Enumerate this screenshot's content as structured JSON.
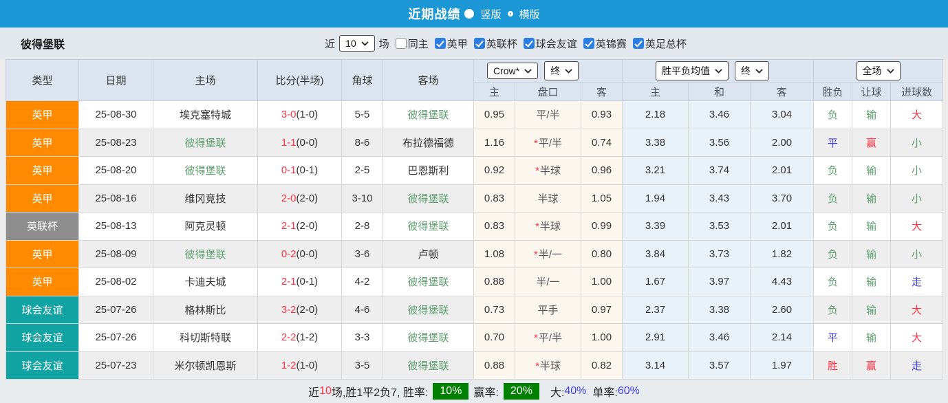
{
  "header": {
    "title": "近期战绩",
    "layout_options": [
      {
        "label": "竖版",
        "selected": true
      },
      {
        "label": "横版",
        "selected": false
      }
    ]
  },
  "filter": {
    "team": "彼得堡联",
    "near_label": "近",
    "matches_value": "10",
    "matches_label": "场",
    "same_home": {
      "label": "同主",
      "checked": false
    },
    "leagues": [
      {
        "label": "英甲",
        "checked": true
      },
      {
        "label": "英联杯",
        "checked": true
      },
      {
        "label": "球会友谊",
        "checked": true
      },
      {
        "label": "英锦赛",
        "checked": true
      },
      {
        "label": "英足总杯",
        "checked": true
      }
    ]
  },
  "league_colors": {
    "英甲": "#ff8a00",
    "英联杯": "#8e8e8e",
    "球会友谊": "#12a3a3"
  },
  "accent_colors": {
    "topbar_blue": "#1b97d5",
    "checkbox_blue": "#2a7de2",
    "badge_green": "#008000",
    "win_red": "#ff3344",
    "lose_green": "#5f9f6f",
    "draw_blue": "#4343e8"
  },
  "table": {
    "columns": [
      "类型",
      "日期",
      "主场",
      "比分(半场)",
      "角球",
      "客场"
    ],
    "odds_header": {
      "bookmaker_select": "Crow*",
      "bookmaker_time_select": "终",
      "avg_select": "胜平负均值",
      "avg_time_select": "终",
      "scope_select": "全场",
      "sub_columns": [
        "主",
        "盘口",
        "客",
        "主",
        "和",
        "客",
        "胜负",
        "让球",
        "进球数"
      ]
    },
    "rows": [
      {
        "type": "英甲",
        "date": "25-08-30",
        "home": {
          "name": "埃克塞特城",
          "self": false
        },
        "score": "3-0",
        "half": "(1-0)",
        "corner": "5-5",
        "away": {
          "name": "彼得堡联",
          "self": true
        },
        "odds": [
          "0.95",
          "平/半",
          "0.93"
        ],
        "star": false,
        "avg": [
          "2.18",
          "3.46",
          "3.04"
        ],
        "results": [
          {
            "text": "负",
            "color": "green"
          },
          {
            "text": "输",
            "color": "green"
          },
          {
            "text": "大",
            "color": "red"
          }
        ]
      },
      {
        "type": "英甲",
        "date": "25-08-23",
        "home": {
          "name": "彼得堡联",
          "self": true
        },
        "score": "1-1",
        "half": "(0-0)",
        "corner": "8-6",
        "away": {
          "name": "布拉德福德",
          "self": false
        },
        "odds": [
          "1.16",
          "平/半",
          "0.74"
        ],
        "star": true,
        "avg": [
          "3.38",
          "3.56",
          "2.00"
        ],
        "results": [
          {
            "text": "平",
            "color": "blue"
          },
          {
            "text": "赢",
            "color": "red"
          },
          {
            "text": "小",
            "color": "green"
          }
        ]
      },
      {
        "type": "英甲",
        "date": "25-08-20",
        "home": {
          "name": "彼得堡联",
          "self": true
        },
        "score": "0-1",
        "half": "(0-1)",
        "corner": "2-5",
        "away": {
          "name": "巴恩斯利",
          "self": false
        },
        "odds": [
          "0.92",
          "半球",
          "0.96"
        ],
        "star": true,
        "avg": [
          "3.21",
          "3.74",
          "2.01"
        ],
        "results": [
          {
            "text": "负",
            "color": "green"
          },
          {
            "text": "输",
            "color": "green"
          },
          {
            "text": "小",
            "color": "green"
          }
        ]
      },
      {
        "type": "英甲",
        "date": "25-08-16",
        "home": {
          "name": "维冈竞技",
          "self": false
        },
        "score": "2-0",
        "half": "(2-0)",
        "corner": "3-10",
        "away": {
          "name": "彼得堡联",
          "self": true
        },
        "odds": [
          "0.83",
          "半球",
          "1.05"
        ],
        "star": false,
        "avg": [
          "1.94",
          "3.43",
          "3.70"
        ],
        "results": [
          {
            "text": "负",
            "color": "green"
          },
          {
            "text": "输",
            "color": "green"
          },
          {
            "text": "小",
            "color": "green"
          }
        ]
      },
      {
        "type": "英联杯",
        "date": "25-08-13",
        "home": {
          "name": "阿克灵顿",
          "self": false
        },
        "score": "2-1",
        "half": "(2-0)",
        "corner": "2-8",
        "away": {
          "name": "彼得堡联",
          "self": true
        },
        "odds": [
          "0.83",
          "半球",
          "0.99"
        ],
        "star": true,
        "avg": [
          "3.39",
          "3.53",
          "2.01"
        ],
        "results": [
          {
            "text": "负",
            "color": "green"
          },
          {
            "text": "输",
            "color": "green"
          },
          {
            "text": "大",
            "color": "red"
          }
        ]
      },
      {
        "type": "英甲",
        "date": "25-08-09",
        "home": {
          "name": "彼得堡联",
          "self": true
        },
        "score": "0-2",
        "half": "(0-0)",
        "corner": "3-6",
        "away": {
          "name": "卢顿",
          "self": false
        },
        "odds": [
          "1.08",
          "半/一",
          "0.80"
        ],
        "star": true,
        "avg": [
          "3.84",
          "3.73",
          "1.82"
        ],
        "results": [
          {
            "text": "负",
            "color": "green"
          },
          {
            "text": "输",
            "color": "green"
          },
          {
            "text": "小",
            "color": "green"
          }
        ]
      },
      {
        "type": "英甲",
        "date": "25-08-02",
        "home": {
          "name": "卡迪夫城",
          "self": false
        },
        "score": "2-1",
        "half": "(0-1)",
        "corner": "4-2",
        "away": {
          "name": "彼得堡联",
          "self": true
        },
        "odds": [
          "0.88",
          "半/一",
          "1.00"
        ],
        "star": false,
        "avg": [
          "1.67",
          "3.97",
          "4.43"
        ],
        "results": [
          {
            "text": "负",
            "color": "green"
          },
          {
            "text": "输",
            "color": "green"
          },
          {
            "text": "走",
            "color": "blue"
          }
        ]
      },
      {
        "type": "球会友谊",
        "date": "25-07-26",
        "home": {
          "name": "格林斯比",
          "self": false
        },
        "score": "3-2",
        "half": "(2-0)",
        "corner": "4-6",
        "away": {
          "name": "彼得堡联",
          "self": true
        },
        "odds": [
          "0.73",
          "平手",
          "0.97"
        ],
        "star": false,
        "avg": [
          "2.37",
          "3.38",
          "2.60"
        ],
        "results": [
          {
            "text": "负",
            "color": "green"
          },
          {
            "text": "输",
            "color": "green"
          },
          {
            "text": "大",
            "color": "red"
          }
        ]
      },
      {
        "type": "球会友谊",
        "date": "25-07-26",
        "home": {
          "name": "科切斯特联",
          "self": false
        },
        "score": "2-2",
        "half": "(1-2)",
        "corner": "3-3",
        "away": {
          "name": "彼得堡联",
          "self": true
        },
        "odds": [
          "0.70",
          "平/半",
          "1.00"
        ],
        "star": true,
        "avg": [
          "2.91",
          "3.46",
          "2.14"
        ],
        "results": [
          {
            "text": "平",
            "color": "blue"
          },
          {
            "text": "输",
            "color": "green"
          },
          {
            "text": "大",
            "color": "red"
          }
        ]
      },
      {
        "type": "球会友谊",
        "date": "25-07-23",
        "home": {
          "name": "米尔顿凯恩斯",
          "self": false
        },
        "score": "1-2",
        "half": "(1-0)",
        "corner": "3-5",
        "away": {
          "name": "彼得堡联",
          "self": true
        },
        "odds": [
          "0.88",
          "半球",
          "0.82"
        ],
        "star": true,
        "avg": [
          "3.14",
          "3.57",
          "1.97"
        ],
        "results": [
          {
            "text": "胜",
            "color": "red"
          },
          {
            "text": "赢",
            "color": "red"
          },
          {
            "text": "走",
            "color": "blue"
          }
        ]
      }
    ]
  },
  "summary": {
    "prefix": "近",
    "count": "10",
    "mid": "场,胜1平2负7, 胜率:",
    "win_rate": "10%",
    "profit_label": "赢率:",
    "profit_rate": "20%",
    "big_label": "大:",
    "big_value": "40%",
    "single_label": "单率:",
    "single_value": "60%"
  }
}
